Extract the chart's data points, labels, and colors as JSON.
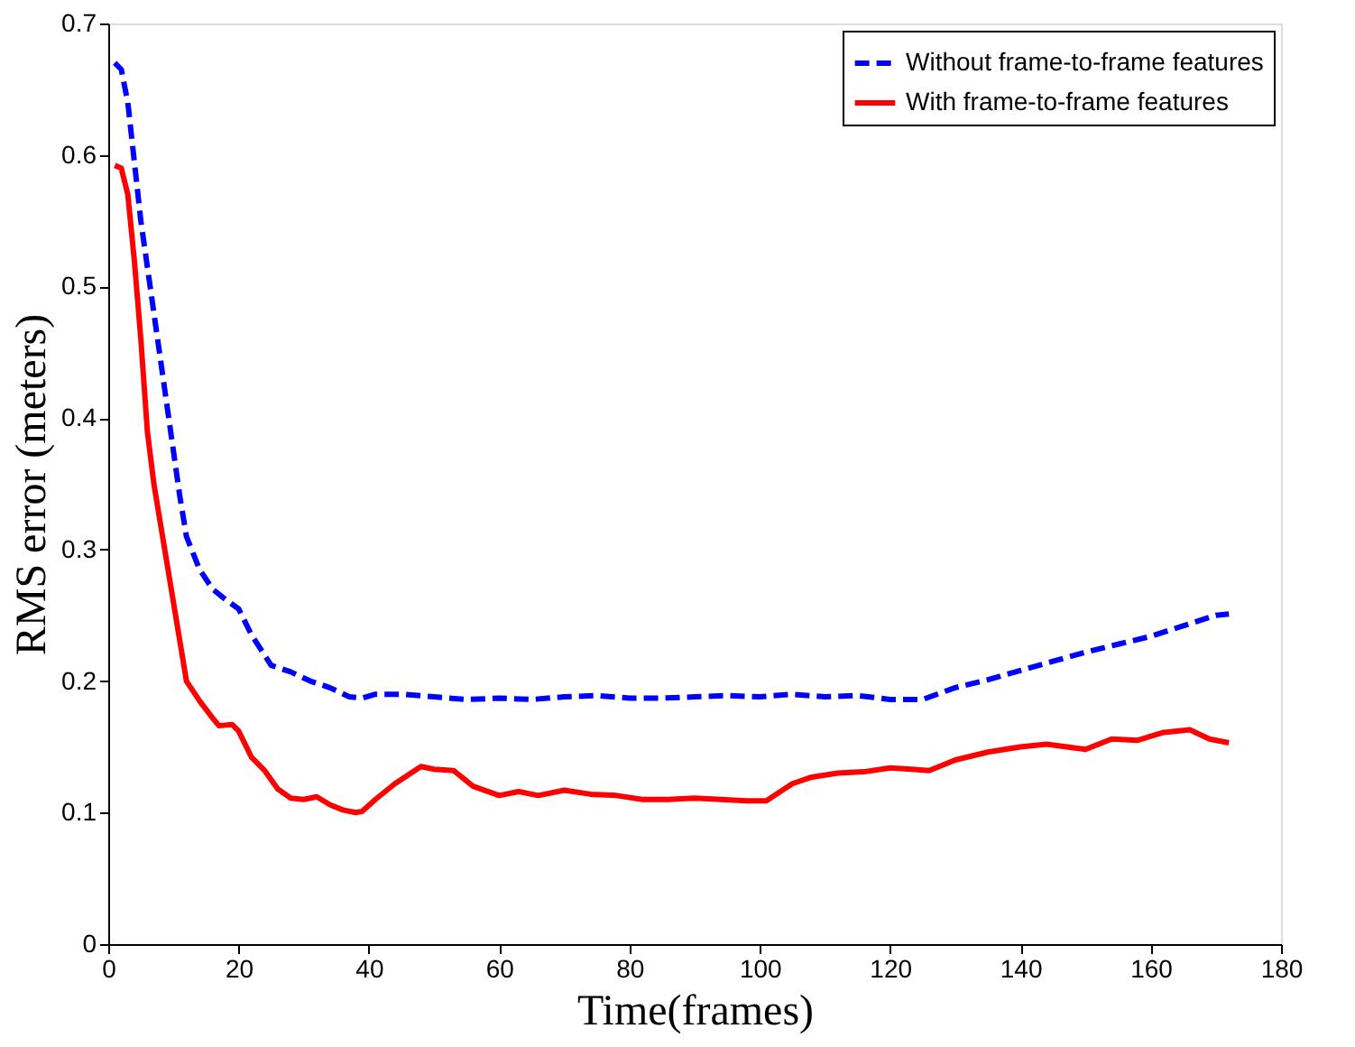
{
  "chart_data": {
    "type": "line",
    "xlabel": "Time(frames)",
    "ylabel": "RMS error (meters)",
    "xlim": [
      0,
      180
    ],
    "xticks": [
      0,
      20,
      40,
      60,
      80,
      100,
      120,
      140,
      160,
      180
    ],
    "ylim": [
      0,
      0.7
    ],
    "yticks": [
      0,
      0.1,
      0.2,
      0.3,
      0.4,
      0.5,
      0.6,
      0.7
    ],
    "grid": false,
    "legend": "top right",
    "marker": "none",
    "series": [
      {
        "name": "Without frame-to-frame features",
        "color": "#0000ff",
        "line_style": "dashed",
        "x": [
          1,
          2,
          3,
          5,
          7,
          9,
          11,
          12,
          14,
          16,
          18,
          20,
          22,
          25,
          28,
          31,
          34,
          37,
          39,
          41,
          45,
          50,
          55,
          60,
          65,
          70,
          75,
          80,
          85,
          90,
          95,
          100,
          105,
          110,
          115,
          120,
          125,
          130,
          135,
          140,
          145,
          150,
          155,
          160,
          165,
          170,
          172
        ],
        "values": [
          0.67,
          0.665,
          0.64,
          0.55,
          0.48,
          0.41,
          0.34,
          0.31,
          0.285,
          0.27,
          0.262,
          0.255,
          0.235,
          0.212,
          0.207,
          0.2,
          0.195,
          0.188,
          0.187,
          0.19,
          0.19,
          0.188,
          0.186,
          0.187,
          0.186,
          0.188,
          0.189,
          0.187,
          0.187,
          0.188,
          0.189,
          0.188,
          0.19,
          0.188,
          0.189,
          0.186,
          0.186,
          0.195,
          0.201,
          0.208,
          0.215,
          0.222,
          0.228,
          0.234,
          0.242,
          0.25,
          0.251
        ]
      },
      {
        "name": "With frame-to-frame features",
        "color": "#ff0000",
        "line_style": "solid",
        "x": [
          1,
          2,
          3,
          4,
          5,
          6,
          7,
          9,
          11,
          12,
          14,
          16,
          17,
          19,
          20,
          22,
          24,
          26,
          28,
          30,
          32,
          34,
          36,
          38,
          39,
          41,
          44,
          48,
          50,
          53,
          56,
          60,
          63,
          66,
          70,
          74,
          78,
          82,
          86,
          90,
          94,
          98,
          101,
          105,
          108,
          112,
          116,
          120,
          126,
          130,
          135,
          140,
          144,
          150,
          154,
          158,
          162,
          166,
          169,
          172
        ],
        "values": [
          0.592,
          0.59,
          0.57,
          0.52,
          0.46,
          0.39,
          0.35,
          0.29,
          0.23,
          0.2,
          0.185,
          0.172,
          0.166,
          0.167,
          0.162,
          0.142,
          0.132,
          0.118,
          0.111,
          0.11,
          0.112,
          0.106,
          0.102,
          0.1,
          0.101,
          0.11,
          0.122,
          0.135,
          0.133,
          0.132,
          0.12,
          0.113,
          0.116,
          0.113,
          0.117,
          0.114,
          0.113,
          0.11,
          0.11,
          0.111,
          0.11,
          0.109,
          0.109,
          0.122,
          0.127,
          0.13,
          0.131,
          0.134,
          0.132,
          0.14,
          0.146,
          0.15,
          0.152,
          0.148,
          0.156,
          0.155,
          0.161,
          0.163,
          0.156,
          0.153
        ]
      }
    ]
  }
}
